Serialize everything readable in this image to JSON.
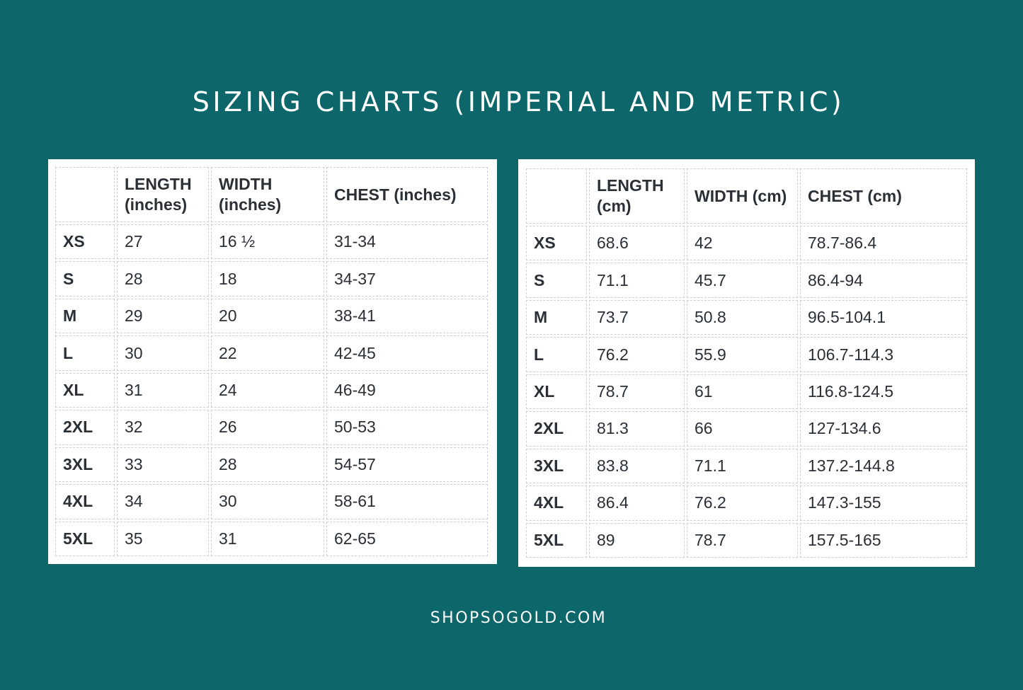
{
  "title": "SIZING CHARTS (IMPERIAL AND METRIC)",
  "footer": "SHOPSOGOLD.COM",
  "imperial": {
    "headers": [
      "",
      "LENGTH (inches)",
      "WIDTH (inches)",
      "CHEST (inches)"
    ],
    "rows": [
      [
        "XS",
        "27",
        "16 ½",
        "31-34"
      ],
      [
        "S",
        "28",
        "18",
        "34-37"
      ],
      [
        "M",
        "29",
        "20",
        "38-41"
      ],
      [
        "L",
        "30",
        "22",
        "42-45"
      ],
      [
        "XL",
        "31",
        "24",
        "46-49"
      ],
      [
        "2XL",
        "32",
        "26",
        "50-53"
      ],
      [
        "3XL",
        "33",
        "28",
        "54-57"
      ],
      [
        "4XL",
        "34",
        "30",
        "58-61"
      ],
      [
        "5XL",
        "35",
        "31",
        "62-65"
      ]
    ]
  },
  "metric": {
    "headers": [
      "",
      "LENGTH (cm)",
      "WIDTH (cm)",
      "CHEST (cm)"
    ],
    "rows": [
      [
        "XS",
        "68.6",
        "42",
        "78.7-86.4"
      ],
      [
        "S",
        "71.1",
        "45.7",
        "86.4-94"
      ],
      [
        "M",
        "73.7",
        "50.8",
        "96.5-104.1"
      ],
      [
        "L",
        "76.2",
        "55.9",
        "106.7-114.3"
      ],
      [
        "XL",
        "78.7",
        "61",
        "116.8-124.5"
      ],
      [
        "2XL",
        "81.3",
        "66",
        "127-134.6"
      ],
      [
        "3XL",
        "83.8",
        "71.1",
        "137.2-144.8"
      ],
      [
        "4XL",
        "86.4",
        "76.2",
        "147.3-155"
      ],
      [
        "5XL",
        "89",
        "78.7",
        "157.5-165"
      ]
    ]
  },
  "colors": {
    "background": "#0d6669",
    "panel": "#ffffff",
    "text": "#2b2f36",
    "title": "#ffffff"
  }
}
